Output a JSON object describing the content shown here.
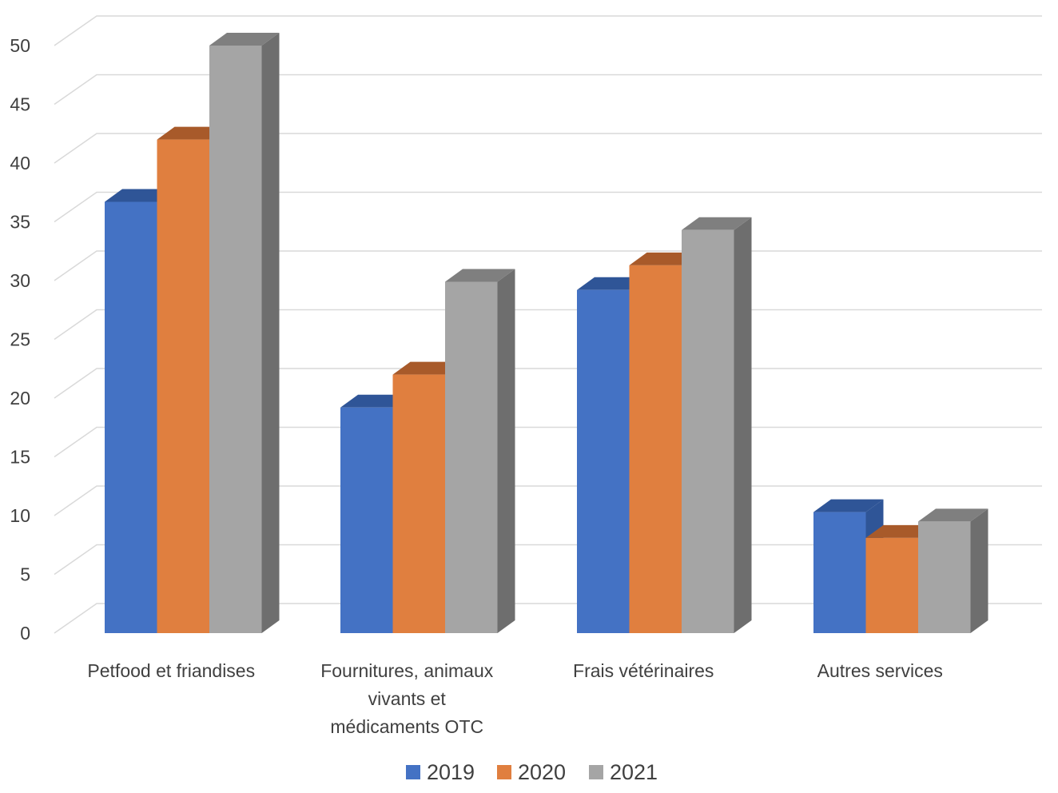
{
  "chart_data": {
    "type": "bar",
    "title": "",
    "xlabel": "",
    "ylabel": "",
    "ylim": [
      0,
      50
    ],
    "yticks": [
      0,
      5,
      10,
      15,
      20,
      25,
      30,
      35,
      40,
      45,
      50
    ],
    "grid": true,
    "legend_position": "bottom",
    "categories": [
      [
        "Petfood et friandises"
      ],
      [
        "Fournitures, animaux",
        "vivants et",
        "médicaments OTC"
      ],
      [
        "Frais vétérinaires"
      ],
      [
        "Autres services"
      ]
    ],
    "series": [
      {
        "name": "2019",
        "color": "#4472C4",
        "top_color": "#2F5597",
        "side_color": "#2F5597",
        "values": [
          36.7,
          19.2,
          29.2,
          10.3
        ]
      },
      {
        "name": "2020",
        "color": "#E07F3F",
        "top_color": "#A85A2A",
        "side_color": "#A85A2A",
        "values": [
          42.0,
          22.0,
          31.3,
          8.1
        ]
      },
      {
        "name": "2021",
        "color": "#A5A5A5",
        "top_color": "#7F7F7F",
        "side_color": "#6E6E6E",
        "values": [
          50.0,
          29.9,
          34.3,
          9.5
        ]
      }
    ]
  }
}
